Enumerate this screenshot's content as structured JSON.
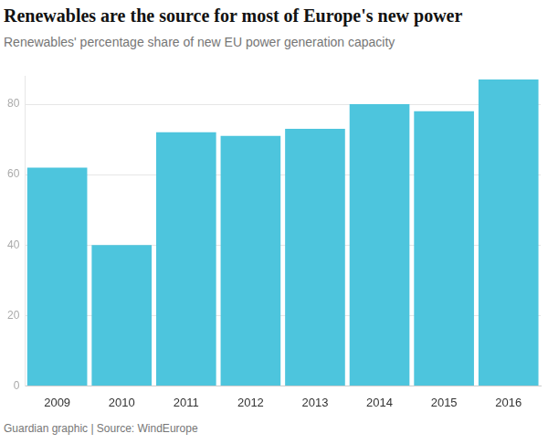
{
  "chart_data": {
    "type": "bar",
    "title": "Renewables are the source for most of Europe's new power",
    "subtitle": "Renewables' percentage share of new EU power generation capacity",
    "source": "Guardian graphic | Source: WindEurope",
    "categories": [
      "2009",
      "2010",
      "2011",
      "2012",
      "2013",
      "2014",
      "2015",
      "2016"
    ],
    "values": [
      62,
      40,
      72,
      71,
      73,
      80,
      78,
      87
    ],
    "color": "#4dc5dd",
    "ylim": [
      0,
      88
    ],
    "yticks": [
      0,
      20,
      40,
      60,
      80
    ],
    "grid": true
  }
}
